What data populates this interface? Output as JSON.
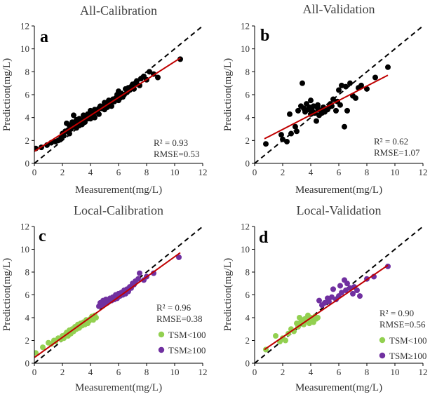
{
  "figure": {
    "panels": [
      {
        "title": "All-Calibration",
        "letter": "a",
        "xlabel": "Measurement(mg/L)",
        "ylabel": "Prediction(mg/L)",
        "r2_text": "R² = 0.93",
        "rmse_text": "RMSE=0.53"
      },
      {
        "title": "All-Validation",
        "letter": "b",
        "xlabel": "Measurement(mg/L)",
        "ylabel": "Prediction(mg/L)",
        "r2_text": "R² = 0.62",
        "rmse_text": "RMSE=1.07"
      },
      {
        "title": "Local-Calibration",
        "letter": "c",
        "xlabel": "Measurement(mg/L)",
        "ylabel": "Prediction(mg/L)",
        "r2_text": "R² = 0.96",
        "rmse_text": "RMSE=0.38",
        "legend": [
          "TSM<100",
          "TSM≥100"
        ]
      },
      {
        "title": "Local-Validation",
        "letter": "d",
        "xlabel": "Measurement(mg/L)",
        "ylabel": "Prediction(mg/L)",
        "r2_text": "R² = 0.90",
        "rmse_text": "RMSE=0.56",
        "legend": [
          "TSM<100",
          "TSM≥100"
        ]
      }
    ]
  },
  "colors": {
    "black_points": "#000000",
    "green_points": "#92d050",
    "purple_points": "#7030a0",
    "fit_line": "#c00000",
    "one_to_one": "#000000"
  },
  "chart_data": [
    {
      "type": "scatter",
      "title": "All-Calibration",
      "xlabel": "Measurement(mg/L)",
      "ylabel": "Prediction(mg/L)",
      "xlim": [
        0,
        12
      ],
      "ylim": [
        0,
        12
      ],
      "xticks": [
        0,
        2,
        4,
        6,
        8,
        10,
        12
      ],
      "yticks": [
        0,
        2,
        4,
        6,
        8,
        10,
        12
      ],
      "fit_line": {
        "x": [
          0,
          10.4
        ],
        "y": [
          1.05,
          9.2
        ]
      },
      "one_to_one": true,
      "series": [
        {
          "color": "#000000",
          "x": [
            0.1,
            0.5,
            0.9,
            1.2,
            1.5,
            1.7,
            1.9,
            2.0,
            2.1,
            2.2,
            2.3,
            2.4,
            2.5,
            2.5,
            2.6,
            2.7,
            2.8,
            2.8,
            2.9,
            3.0,
            3.0,
            3.1,
            3.2,
            3.2,
            3.3,
            3.4,
            3.5,
            3.5,
            3.6,
            3.7,
            3.8,
            3.8,
            3.9,
            4.0,
            4.0,
            4.1,
            4.2,
            4.3,
            4.3,
            4.4,
            4.5,
            4.6,
            4.6,
            4.7,
            4.8,
            4.9,
            5.0,
            5.0,
            5.1,
            5.2,
            5.3,
            5.4,
            5.5,
            5.5,
            5.6,
            5.7,
            5.8,
            5.9,
            6.0,
            6.0,
            6.1,
            6.2,
            6.3,
            6.4,
            6.5,
            6.6,
            6.7,
            6.8,
            6.9,
            7.0,
            7.1,
            7.2,
            7.3,
            7.5,
            7.6,
            7.8,
            8.0,
            8.2,
            8.5,
            8.8,
            10.4
          ],
          "y": [
            1.3,
            1.4,
            1.6,
            1.8,
            1.9,
            2.0,
            2.2,
            2.6,
            2.4,
            2.8,
            3.5,
            2.9,
            2.6,
            3.3,
            3.0,
            3.6,
            3.2,
            4.2,
            3.4,
            3.1,
            3.8,
            3.5,
            3.3,
            3.9,
            3.7,
            3.4,
            4.2,
            3.8,
            3.6,
            4.0,
            4.3,
            3.9,
            4.1,
            4.6,
            3.9,
            4.4,
            4.2,
            4.0,
            4.7,
            4.5,
            4.6,
            4.8,
            4.3,
            5.0,
            4.8,
            4.9,
            5.3,
            4.7,
            5.1,
            4.9,
            5.5,
            5.2,
            5.4,
            5.0,
            5.6,
            5.4,
            5.7,
            6.0,
            5.5,
            6.3,
            5.7,
            6.1,
            5.8,
            6.0,
            6.5,
            6.2,
            6.6,
            6.4,
            6.7,
            6.9,
            6.5,
            7.0,
            7.2,
            6.8,
            7.4,
            7.6,
            7.3,
            8.0,
            7.8,
            7.5,
            9.1
          ]
        }
      ]
    },
    {
      "type": "scatter",
      "title": "All-Validation",
      "xlabel": "Measurement(mg/L)",
      "ylabel": "Prediction(mg/L)",
      "xlim": [
        0,
        12
      ],
      "ylim": [
        0,
        12
      ],
      "xticks": [
        0,
        2,
        4,
        6,
        8,
        10,
        12
      ],
      "yticks": [
        0,
        2,
        4,
        6,
        8,
        10,
        12
      ],
      "fit_line": {
        "x": [
          0.7,
          9.5
        ],
        "y": [
          2.15,
          7.7
        ]
      },
      "one_to_one": true,
      "series": [
        {
          "color": "#000000",
          "x": [
            0.8,
            1.9,
            2.0,
            2.3,
            2.5,
            2.6,
            2.9,
            3.0,
            3.1,
            3.3,
            3.4,
            3.5,
            3.6,
            3.7,
            3.8,
            3.9,
            4.0,
            4.0,
            4.1,
            4.2,
            4.3,
            4.4,
            4.5,
            4.5,
            4.6,
            4.7,
            4.8,
            4.9,
            5.0,
            5.2,
            5.3,
            5.4,
            5.5,
            5.6,
            5.8,
            5.9,
            6.0,
            6.1,
            6.2,
            6.4,
            6.5,
            6.6,
            6.8,
            7.0,
            7.2,
            7.4,
            7.6,
            8.0,
            8.6,
            9.5
          ],
          "y": [
            1.7,
            2.5,
            2.1,
            1.9,
            4.3,
            2.6,
            3.2,
            2.8,
            4.6,
            5.0,
            7.0,
            4.8,
            4.5,
            5.2,
            4.7,
            4.9,
            5.5,
            4.3,
            4.6,
            5.0,
            4.4,
            3.7,
            4.8,
            5.1,
            4.2,
            4.6,
            4.4,
            4.9,
            4.5,
            4.7,
            4.9,
            5.2,
            5.0,
            5.6,
            4.6,
            5.4,
            6.4,
            5.1,
            6.8,
            3.2,
            6.7,
            4.6,
            7.0,
            5.9,
            5.7,
            6.6,
            6.8,
            6.5,
            7.5,
            8.4
          ]
        }
      ]
    },
    {
      "type": "scatter",
      "title": "Local-Calibration",
      "xlabel": "Measurement(mg/L)",
      "ylabel": "Prediction(mg/L)",
      "xlim": [
        0,
        12
      ],
      "ylim": [
        0,
        12
      ],
      "xticks": [
        0,
        2,
        4,
        6,
        8,
        10,
        12
      ],
      "yticks": [
        0,
        2,
        4,
        6,
        8,
        10,
        12
      ],
      "fit_line": {
        "x": [
          0,
          10.4
        ],
        "y": [
          0.5,
          9.7
        ]
      },
      "one_to_one": true,
      "series": [
        {
          "name": "TSM<100",
          "color": "#92d050",
          "x": [
            0.1,
            0.6,
            1.0,
            1.2,
            1.4,
            1.5,
            1.7,
            1.9,
            2.0,
            2.1,
            2.2,
            2.3,
            2.4,
            2.5,
            2.6,
            2.7,
            2.8,
            2.9,
            3.0,
            3.1,
            3.2,
            3.3,
            3.4,
            3.5,
            3.6,
            3.7,
            3.8,
            3.9,
            4.0,
            4.1,
            4.2,
            4.3,
            4.4
          ],
          "y": [
            0.9,
            1.4,
            1.8,
            1.7,
            2.0,
            1.9,
            2.2,
            2.1,
            2.4,
            2.2,
            2.5,
            2.7,
            2.4,
            2.9,
            2.6,
            3.0,
            2.8,
            3.2,
            3.0,
            3.4,
            3.1,
            3.5,
            3.3,
            3.6,
            3.4,
            3.8,
            3.5,
            3.7,
            3.9,
            4.1,
            3.8,
            4.2,
            4.0
          ]
        },
        {
          "name": "TSM≥100",
          "color": "#7030a0",
          "x": [
            4.6,
            4.7,
            4.8,
            4.9,
            5.0,
            5.1,
            5.2,
            5.3,
            5.4,
            5.5,
            5.6,
            5.7,
            5.8,
            5.9,
            6.0,
            6.1,
            6.2,
            6.3,
            6.4,
            6.5,
            6.6,
            6.7,
            6.8,
            6.9,
            7.0,
            7.1,
            7.2,
            7.4,
            7.5,
            7.8,
            8.0,
            8.5,
            10.3
          ],
          "y": [
            5.0,
            5.3,
            5.1,
            5.5,
            5.2,
            5.6,
            5.3,
            5.4,
            5.7,
            5.5,
            5.8,
            5.6,
            6.0,
            5.7,
            6.1,
            5.9,
            6.2,
            6.0,
            6.4,
            6.1,
            6.5,
            6.3,
            6.7,
            6.6,
            7.0,
            6.9,
            7.2,
            7.4,
            7.9,
            7.3,
            7.6,
            7.9,
            9.3
          ]
        }
      ]
    },
    {
      "type": "scatter",
      "title": "Local-Validation",
      "xlabel": "Measurement(mg/L)",
      "ylabel": "Prediction(mg/L)",
      "xlim": [
        0,
        12
      ],
      "ylim": [
        0,
        12
      ],
      "xticks": [
        0,
        2,
        4,
        6,
        8,
        10,
        12
      ],
      "yticks": [
        0,
        2,
        4,
        6,
        8,
        10,
        12
      ],
      "fit_line": {
        "x": [
          0.7,
          9.5
        ],
        "y": [
          1.2,
          8.6
        ]
      },
      "one_to_one": true,
      "series": [
        {
          "name": "TSM<100",
          "color": "#92d050",
          "x": [
            0.8,
            1.5,
            1.8,
            2.0,
            2.2,
            2.4,
            2.6,
            2.8,
            3.0,
            3.1,
            3.2,
            3.3,
            3.4,
            3.5,
            3.6,
            3.7,
            3.8,
            3.9,
            4.0,
            4.1,
            4.2,
            4.3,
            4.4,
            4.5
          ],
          "y": [
            1.2,
            2.4,
            1.9,
            2.2,
            2.0,
            2.6,
            3.0,
            2.8,
            3.5,
            3.2,
            4.0,
            3.6,
            3.8,
            3.4,
            3.9,
            3.7,
            4.2,
            3.5,
            4.0,
            3.8,
            3.6,
            4.1,
            3.9,
            4.0
          ]
        },
        {
          "name": "TSM≥100",
          "color": "#7030a0",
          "x": [
            4.6,
            4.8,
            5.0,
            5.2,
            5.3,
            5.5,
            5.6,
            5.8,
            6.0,
            6.1,
            6.2,
            6.4,
            6.5,
            6.6,
            6.8,
            7.0,
            7.1,
            7.3,
            7.5,
            8.0,
            8.5,
            9.5
          ],
          "y": [
            5.5,
            5.1,
            5.3,
            5.7,
            5.4,
            5.8,
            6.5,
            5.6,
            5.9,
            6.8,
            6.2,
            7.3,
            6.4,
            7.0,
            6.6,
            6.1,
            6.7,
            6.4,
            5.9,
            7.4,
            7.6,
            8.5
          ]
        }
      ]
    }
  ]
}
